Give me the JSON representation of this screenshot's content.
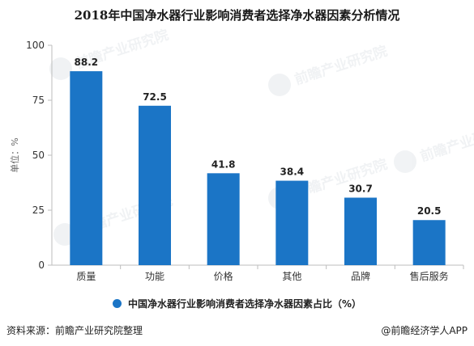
{
  "colors": {
    "bar": "#1b75c6",
    "axis": "#bdbdbd",
    "text": "#333333"
  },
  "source_text": "资料来源：前瞻产业研究院整理",
  "credit_text": "@前瞻经济学人APP",
  "watermark_text": "前瞻产业研究院",
  "chart_data": {
    "type": "bar",
    "title": "2018年中国净水器行业影响消费者选择净水器因素分析情况",
    "ylabel": "单位：%",
    "xlabel": "",
    "ylim": [
      0,
      100
    ],
    "yticks": [
      0,
      25,
      50,
      75,
      100
    ],
    "grid": false,
    "legend_position": "bottom",
    "categories": [
      "质量",
      "功能",
      "价格",
      "其他",
      "品牌",
      "售后服务"
    ],
    "series": [
      {
        "name": "中国净水器行业影响消费者选择净水器因素占比（%）",
        "values": [
          88.2,
          72.5,
          41.8,
          38.4,
          30.7,
          20.5
        ]
      }
    ]
  }
}
